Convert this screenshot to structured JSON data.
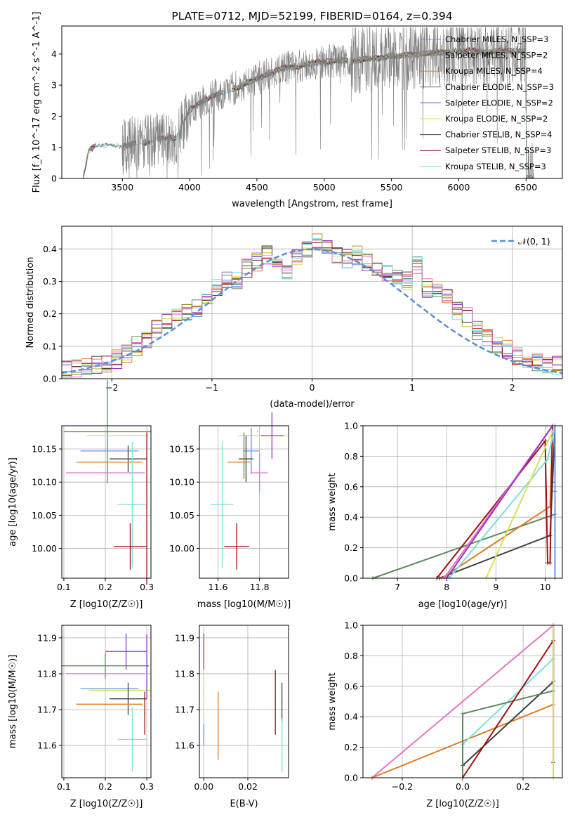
{
  "chart_data": [
    {
      "type": "line",
      "title": "PLATE=0712, MJD=52199, FIBERID=0164, z=0.394",
      "xlabel": "wavelength [Angstrom, rest frame]",
      "ylabel": "Flux [f_λ 10^-17 erg cm^-2 s^-1 A^-1]",
      "xlim": [
        3050,
        6770
      ],
      "ylim": [
        0,
        4.9
      ],
      "xticks": [
        "3500",
        "4000",
        "4500",
        "5000",
        "5500",
        "6000",
        "6500"
      ],
      "yticks": [
        "0",
        "1",
        "2",
        "3",
        "4"
      ],
      "legend_position": "upper right",
      "series": [
        {
          "name": "Chabrier MILES, N_SSP=3",
          "color": "#6495ed"
        },
        {
          "name": "Salpeter MILES, N_SSP=2",
          "color": "#8b8b00"
        },
        {
          "name": "Kroupa MILES, N_SSP=4",
          "color": "#e07b22"
        },
        {
          "name": "Chabrier ELODIE, N_SSP=3",
          "color": "#5d8a5d"
        },
        {
          "name": "Salpeter ELODIE, N_SSP=2",
          "color": "#9932cc"
        },
        {
          "name": "Kroupa ELODIE, N_SSP=2",
          "color": "#d4e157"
        },
        {
          "name": "Chabrier STELIB, N_SSP=4",
          "color": "#404040"
        },
        {
          "name": "Salpeter STELIB, N_SSP=3",
          "color": "#a01010"
        },
        {
          "name": "Kroupa STELIB, N_SSP=3",
          "color": "#7fdede"
        }
      ],
      "continuum": {
        "x": [
          3210,
          3250,
          3300,
          3400,
          3500,
          3600,
          3700,
          3800,
          3900,
          4000,
          4100,
          4200,
          4300,
          4400,
          4500,
          4600,
          4700,
          4800,
          4900,
          5000,
          5100,
          5200,
          5300,
          5400,
          5500,
          5600,
          5700,
          5800,
          5900,
          6000,
          6100,
          6200,
          6300,
          6400,
          6500
        ],
        "y": [
          0.05,
          0.9,
          1.05,
          1.1,
          1.0,
          1.15,
          1.15,
          1.3,
          1.3,
          2.2,
          2.5,
          2.7,
          2.85,
          3.0,
          3.2,
          3.4,
          3.55,
          3.6,
          3.7,
          3.75,
          3.8,
          3.75,
          3.85,
          3.85,
          3.95,
          3.95,
          4.0,
          4.05,
          4.05,
          4.1,
          4.1,
          4.05,
          4.1,
          4.1,
          4.1
        ]
      },
      "observed_color": "#808080"
    },
    {
      "type": "line",
      "xlabel": "(data-model)/error",
      "ylabel": "Normed distribution",
      "xlim": [
        -2.5,
        2.5
      ],
      "ylim": [
        0,
        0.47
      ],
      "xticks": [
        "−2",
        "−1",
        "0",
        "1",
        "2"
      ],
      "yticks": [
        "0.0",
        "0.1",
        "0.2",
        "0.3",
        "0.4"
      ],
      "legend": "𝒩(0, 1)",
      "legend_position": "upper right",
      "normal_curve_color": "#5b8ed6",
      "bin_width": 0.1,
      "bin_start": -2.5,
      "base_histogram": [
        0.03,
        0.03,
        0.035,
        0.04,
        0.045,
        0.06,
        0.08,
        0.1,
        0.12,
        0.15,
        0.18,
        0.2,
        0.2,
        0.22,
        0.26,
        0.28,
        0.3,
        0.3,
        0.34,
        0.36,
        0.38,
        0.36,
        0.33,
        0.37,
        0.4,
        0.42,
        0.4,
        0.38,
        0.37,
        0.38,
        0.36,
        0.34,
        0.33,
        0.32,
        0.3,
        0.35,
        0.28,
        0.27,
        0.25,
        0.21,
        0.19,
        0.15,
        0.13,
        0.1,
        0.09,
        0.07,
        0.06,
        0.05,
        0.04,
        0.04
      ]
    },
    {
      "type": "scatter",
      "subtype": "errorbar",
      "xlabel": "Z [log10(Z/Z☉)]",
      "ylabel": "age  [log10(age/yr)]",
      "xlim": [
        0.095,
        0.31
      ],
      "ylim": [
        9.955,
        10.185
      ],
      "xticks": [
        "0.1",
        "0.2",
        "0.3"
      ],
      "yticks": [
        "10.00",
        "10.05",
        "10.10",
        "10.15"
      ],
      "points": [
        {
          "x": 0.205,
          "y": 10.176,
          "xerr": 0.105,
          "yerr": 0.078,
          "color": "#5d8a5d"
        },
        {
          "x": 0.23,
          "y": 10.17,
          "xerr": 0.075,
          "yerr": 0.0,
          "color": "#d4e157"
        },
        {
          "x": 0.21,
          "y": 10.147,
          "xerr": 0.07,
          "yerr": 0.0,
          "color": "#6495ed"
        },
        {
          "x": 0.255,
          "y": 10.135,
          "xerr": 0.045,
          "yerr": 0.02,
          "color": "#404040"
        },
        {
          "x": 0.21,
          "y": 10.13,
          "xerr": 0.08,
          "yerr": 0.0,
          "color": "#e07b22"
        },
        {
          "x": 0.2,
          "y": 10.114,
          "xerr": 0.095,
          "yerr": 0.0,
          "color": "#e377c2"
        },
        {
          "x": 0.265,
          "y": 10.066,
          "xerr": 0.035,
          "yerr": 0.095,
          "color": "#7fdede"
        },
        {
          "x": 0.26,
          "y": 10.003,
          "xerr": 0.04,
          "yerr": 0.035,
          "color": "#a01010"
        },
        {
          "x": 0.3,
          "y": 10.06,
          "xerr": 0.0,
          "yerr": 0.115,
          "color": "#a01010"
        }
      ]
    },
    {
      "type": "scatter",
      "subtype": "errorbar",
      "xlabel": "mass [log10(M/M☉)]",
      "xlim": [
        11.51,
        11.94
      ],
      "ylim": [
        9.955,
        10.185
      ],
      "xticks": [
        "11.6",
        "11.8"
      ],
      "yticks": [
        "10.00",
        "10.05",
        "10.10",
        "10.15"
      ],
      "points": [
        {
          "x": 11.815,
          "y": 10.17,
          "xerr": 0.12,
          "yerr": 0.0,
          "color": "#d4e157"
        },
        {
          "x": 11.86,
          "y": 10.17,
          "xerr": 0.055,
          "yerr": 0.035,
          "color": "#9932cc"
        },
        {
          "x": 11.79,
          "y": 10.176,
          "xerr": 0.0,
          "yerr": 0.0,
          "color": "#7fbf7f"
        },
        {
          "x": 11.76,
          "y": 10.147,
          "xerr": 0.04,
          "yerr": 0.035,
          "color": "#6495ed"
        },
        {
          "x": 11.735,
          "y": 10.135,
          "xerr": 0.035,
          "yerr": 0.035,
          "color": "#404040"
        },
        {
          "x": 11.7,
          "y": 10.13,
          "xerr": 0.055,
          "yerr": 0.0,
          "color": "#e07b22"
        },
        {
          "x": 11.8,
          "y": 10.114,
          "xerr": 0.04,
          "yerr": 0.03,
          "color": "#e377c2"
        },
        {
          "x": 11.62,
          "y": 10.066,
          "xerr": 0.055,
          "yerr": 0.095,
          "color": "#7fdede"
        },
        {
          "x": 11.69,
          "y": 10.003,
          "xerr": 0.06,
          "yerr": 0.035,
          "color": "#a01010"
        },
        {
          "x": 11.725,
          "y": 10.14,
          "xerr": 0.0,
          "yerr": 0.035,
          "color": "#5d8a5d"
        }
      ]
    },
    {
      "type": "line",
      "xlabel": "age  [log10(age/yr)]",
      "ylabel": "mass weight",
      "xlim": [
        6.3,
        10.35
      ],
      "ylim": [
        0,
        1
      ],
      "xticks": [
        "7",
        "8",
        "9",
        "10"
      ],
      "yticks": [
        "0.0",
        "0.2",
        "0.4",
        "0.6",
        "0.8",
        "1.0"
      ],
      "series": [
        {
          "color": "#5d8a5d",
          "x": [
            6.5,
            10.2,
            10.2,
            10.2
          ],
          "y": [
            0,
            0.42,
            0.57,
            1.0
          ]
        },
        {
          "color": "#404040",
          "x": [
            7.85,
            10.1,
            10.15,
            10.2
          ],
          "y": [
            0,
            0.28,
            0.63,
            1.0
          ]
        },
        {
          "color": "#e07b22",
          "x": [
            7.9,
            10.1,
            10.15
          ],
          "y": [
            0,
            0.47,
            1.0
          ]
        },
        {
          "color": "#a01010",
          "x": [
            7.8,
            10.0,
            10.05,
            10.1,
            10.15
          ],
          "y": [
            0,
            0.9,
            0.1,
            0.1,
            1.0
          ]
        },
        {
          "color": "#e377c2",
          "x": [
            7.95,
            10.15
          ],
          "y": [
            0,
            1.0
          ]
        },
        {
          "color": "#9932cc",
          "x": [
            8.0,
            10.15
          ],
          "y": [
            0,
            1.0
          ]
        },
        {
          "color": "#7fdede",
          "x": [
            8.05,
            10.05,
            10.2
          ],
          "y": [
            0,
            0.78,
            1.0
          ]
        },
        {
          "color": "#d4e157",
          "x": [
            8.8,
            10.2
          ],
          "y": [
            0,
            1.0
          ]
        },
        {
          "color": "#6495ed",
          "x": [
            10.2,
            10.2
          ],
          "y": [
            0,
            1.0
          ]
        }
      ]
    },
    {
      "type": "scatter",
      "subtype": "errorbar",
      "xlabel": "Z [log10(Z/Z☉)]",
      "ylabel": "mass [log10(M/M☉)]",
      "xlim": [
        0.095,
        0.31
      ],
      "ylim": [
        11.51,
        11.935
      ],
      "xticks": [
        "0.1",
        "0.2",
        "0.3"
      ],
      "yticks": [
        "11.6",
        "11.7",
        "11.8",
        "11.9"
      ],
      "points": [
        {
          "x": 0.25,
          "y": 11.862,
          "xerr": 0.05,
          "yerr": 0.05,
          "color": "#9932cc"
        },
        {
          "x": 0.2,
          "y": 11.822,
          "xerr": 0.105,
          "yerr": 0.035,
          "color": "#5d8a5d"
        },
        {
          "x": 0.2,
          "y": 11.8,
          "xerr": 0.095,
          "yerr": 0.0,
          "color": "#e377c2"
        },
        {
          "x": 0.21,
          "y": 11.758,
          "xerr": 0.07,
          "yerr": 0.0,
          "color": "#6495ed"
        },
        {
          "x": 0.235,
          "y": 11.754,
          "xerr": 0.075,
          "yerr": 0.0,
          "color": "#d4e157"
        },
        {
          "x": 0.255,
          "y": 11.73,
          "xerr": 0.045,
          "yerr": 0.045,
          "color": "#404040"
        },
        {
          "x": 0.21,
          "y": 11.715,
          "xerr": 0.08,
          "yerr": 0.0,
          "color": "#e07b22"
        },
        {
          "x": 0.265,
          "y": 11.617,
          "xerr": 0.035,
          "yerr": 0.09,
          "color": "#7fdede"
        },
        {
          "x": 0.3,
          "y": 11.82,
          "xerr": 0.0,
          "yerr": 0.09,
          "color": "#9932cc"
        },
        {
          "x": 0.295,
          "y": 11.69,
          "xerr": 0.0,
          "yerr": 0.06,
          "color": "#a01010"
        }
      ]
    },
    {
      "type": "scatter",
      "subtype": "errorbar",
      "xlabel": "E(B-V)",
      "xlim": [
        -0.002,
        0.0385
      ],
      "ylim": [
        11.51,
        11.935
      ],
      "xticks": [
        "0.00",
        "0.02"
      ],
      "yticks": [
        "11.6",
        "11.7",
        "11.8",
        "11.9"
      ],
      "points": [
        {
          "x": 0.0,
          "y": 11.862,
          "xerr": 0.0,
          "yerr": 0.05,
          "color": "#9932cc"
        },
        {
          "x": 0.0,
          "y": 11.75,
          "xerr": 0.0,
          "yerr": 0.06,
          "color": "#d4e157"
        },
        {
          "x": 0.0,
          "y": 11.63,
          "xerr": 0.0,
          "yerr": 0.03,
          "color": "#6495ed"
        },
        {
          "x": 0.0065,
          "y": 11.655,
          "xerr": 0.0,
          "yerr": 0.095,
          "color": "#e07b22"
        },
        {
          "x": 0.0325,
          "y": 11.72,
          "xerr": 0.0,
          "yerr": 0.09,
          "color": "#a01010"
        },
        {
          "x": 0.0355,
          "y": 11.72,
          "xerr": 0.0,
          "yerr": 0.055,
          "color": "#404040"
        },
        {
          "x": 0.0355,
          "y": 11.6,
          "xerr": 0.0,
          "yerr": 0.075,
          "color": "#7fdede"
        }
      ]
    },
    {
      "type": "line",
      "xlabel": "Z [log10(Z/Z☉)]",
      "ylabel": "mass weight",
      "xlim": [
        -0.33,
        0.33
      ],
      "ylim": [
        0,
        1
      ],
      "xticks": [
        "−0.2",
        "0.0",
        "0.2"
      ],
      "yticks": [
        "0.0",
        "0.2",
        "0.4",
        "0.6",
        "0.8",
        "1.0"
      ],
      "series": [
        {
          "color": "#e377c2",
          "x": [
            -0.3,
            0.3
          ],
          "y": [
            0,
            1.0
          ]
        },
        {
          "color": "#e07b22",
          "x": [
            -0.3,
            0.3,
            0.3
          ],
          "y": [
            0,
            0.48,
            1.0
          ]
        },
        {
          "color": "#7fdede",
          "x": [
            0.0,
            0.0,
            0.3,
            0.3
          ],
          "y": [
            0,
            0.22,
            0.78,
            1.0
          ]
        },
        {
          "color": "#404040",
          "x": [
            0.0,
            0.0,
            0.3,
            0.3
          ],
          "y": [
            0,
            0.08,
            0.63,
            1.0
          ]
        },
        {
          "color": "#5d8a5d",
          "x": [
            0.0,
            0.0,
            0.3,
            0.3
          ],
          "y": [
            0,
            0.42,
            0.57,
            1.0
          ]
        },
        {
          "color": "#a01010",
          "x": [
            0.0,
            0.3,
            0.3,
            0.3
          ],
          "y": [
            0,
            0.9,
            0.1,
            1.0
          ]
        },
        {
          "color": "#d4e157",
          "x": [
            0.3,
            0.3
          ],
          "y": [
            0,
            1.0
          ]
        }
      ]
    }
  ]
}
